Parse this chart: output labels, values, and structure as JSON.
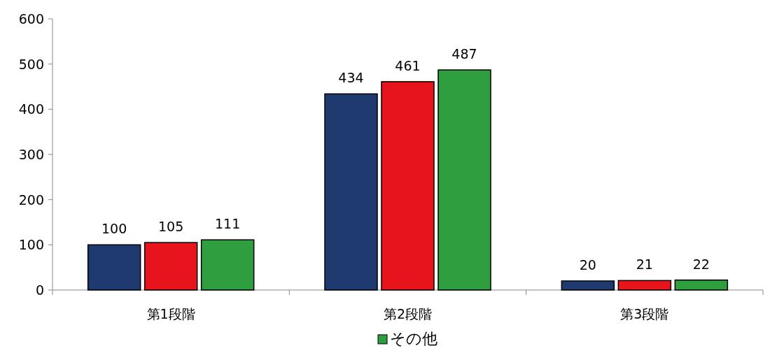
{
  "chart_data": {
    "type": "bar",
    "categories": [
      "第1段階",
      "第2段階",
      "第3段階"
    ],
    "series": [
      {
        "color": "#1f3a6e",
        "values": [
          100,
          434,
          20
        ]
      },
      {
        "color": "#e8141b",
        "values": [
          105,
          461,
          21
        ]
      },
      {
        "name": "その他",
        "color": "#2e9e3e",
        "values": [
          111,
          487,
          22
        ]
      }
    ],
    "ylim": [
      0,
      600
    ],
    "yticks": [
      0,
      100,
      200,
      300,
      400,
      500,
      600
    ],
    "data_labels": true,
    "grid": false,
    "legend": "bottom"
  }
}
